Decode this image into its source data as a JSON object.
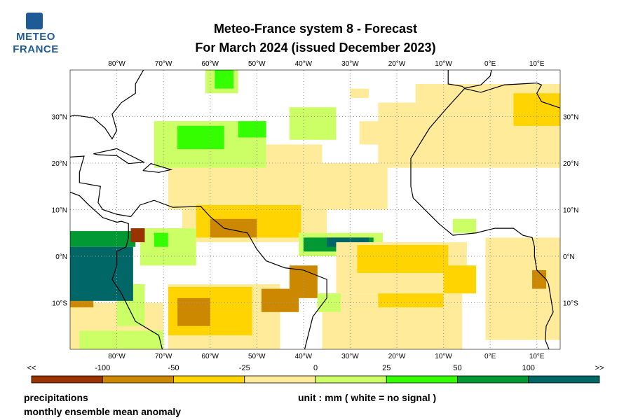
{
  "logo": {
    "line1": "METEO",
    "line2": "FRANCE"
  },
  "title": {
    "line1": "Meteo-France system 8  -  Forecast",
    "line2": "For March 2024      (issued December 2023)"
  },
  "map": {
    "lon_ticks": [
      {
        "v": -80,
        "label": "80°W"
      },
      {
        "v": -70,
        "label": "70°W"
      },
      {
        "v": -60,
        "label": "60°W"
      },
      {
        "v": -50,
        "label": "50°W"
      },
      {
        "v": -40,
        "label": "40°W"
      },
      {
        "v": -30,
        "label": "30°W"
      },
      {
        "v": -20,
        "label": "20°W"
      },
      {
        "v": -10,
        "label": "10°W"
      },
      {
        "v": 0,
        "label": "0°E"
      },
      {
        "v": 10,
        "label": "10°E"
      }
    ],
    "lat_ticks": [
      {
        "v": 30,
        "label": "30°N"
      },
      {
        "v": 20,
        "label": "20°N"
      },
      {
        "v": 10,
        "label": "10°N"
      },
      {
        "v": 0,
        "label": "0°N"
      },
      {
        "v": -10,
        "label": "10°S"
      }
    ],
    "extent": {
      "lon": [
        -90,
        15
      ],
      "lat": [
        -20,
        40
      ]
    },
    "patches": [
      {
        "lon": [
          -24,
          15
        ],
        "lat": [
          19,
          33
        ],
        "cat": 3
      },
      {
        "lon": [
          -16,
          15
        ],
        "lat": [
          33,
          37
        ],
        "cat": 3
      },
      {
        "lon": [
          -28,
          -20
        ],
        "lat": [
          24,
          29
        ],
        "cat": 3
      },
      {
        "lon": [
          -69,
          -22
        ],
        "lat": [
          10,
          20
        ],
        "cat": 3
      },
      {
        "lon": [
          -50,
          -36
        ],
        "lat": [
          19,
          24
        ],
        "cat": 3
      },
      {
        "lon": [
          -30,
          -26
        ],
        "lat": [
          34,
          36
        ],
        "cat": 3
      },
      {
        "lon": [
          -72,
          -48
        ],
        "lat": [
          19,
          29
        ],
        "cat": 4
      },
      {
        "lon": [
          -43,
          -33
        ],
        "lat": [
          25,
          32
        ],
        "cat": 4
      },
      {
        "lon": [
          -61,
          -54
        ],
        "lat": [
          35,
          40
        ],
        "cat": 4
      },
      {
        "lon": [
          -67,
          -57
        ],
        "lat": [
          23,
          28
        ],
        "cat": 5
      },
      {
        "lon": [
          -54,
          -48
        ],
        "lat": [
          25.5,
          29
        ],
        "cat": 5
      },
      {
        "lon": [
          -59,
          -55
        ],
        "lat": [
          36,
          40
        ],
        "cat": 5
      },
      {
        "lon": [
          -66,
          -35
        ],
        "lat": [
          3,
          10
        ],
        "cat": 3
      },
      {
        "lon": [
          -63,
          -40.5
        ],
        "lat": [
          4,
          11
        ],
        "cat": 2
      },
      {
        "lon": [
          -60,
          -50
        ],
        "lat": [
          4,
          8
        ],
        "cat": 1
      },
      {
        "lon": [
          -75,
          -63
        ],
        "lat": [
          -2,
          6
        ],
        "cat": 4
      },
      {
        "lon": [
          -72,
          -69
        ],
        "lat": [
          2,
          5
        ],
        "cat": 5
      },
      {
        "lon": [
          -41,
          -23
        ],
        "lat": [
          0,
          5
        ],
        "cat": 4
      },
      {
        "lon": [
          -40,
          -25
        ],
        "lat": [
          1,
          4
        ],
        "cat": 6
      },
      {
        "lon": [
          -35,
          -26
        ],
        "lat": [
          2,
          4
        ],
        "cat": 7
      },
      {
        "lon": [
          -33,
          -5
        ],
        "lat": [
          -8,
          3
        ],
        "cat": 3
      },
      {
        "lon": [
          -28.5,
          -9
        ],
        "lat": [
          -3.6,
          2.4
        ],
        "cat": 2
      },
      {
        "lon": [
          -10,
          -3
        ],
        "lat": [
          -8,
          -2
        ],
        "cat": 2
      },
      {
        "lon": [
          -36,
          -6
        ],
        "lat": [
          -20,
          -8
        ],
        "cat": 3
      },
      {
        "lon": [
          -24,
          -10
        ],
        "lat": [
          -11,
          -8
        ],
        "cat": 2
      },
      {
        "lon": [
          -69,
          -45
        ],
        "lat": [
          -20,
          -6
        ],
        "cat": 3
      },
      {
        "lon": [
          -69,
          -51
        ],
        "lat": [
          -17,
          -6.6
        ],
        "cat": 2
      },
      {
        "lon": [
          -67,
          -60
        ],
        "lat": [
          -15,
          -9
        ],
        "cat": 1
      },
      {
        "lon": [
          -49,
          -41
        ],
        "lat": [
          -12,
          -7
        ],
        "cat": 1
      },
      {
        "lon": [
          -43,
          -37
        ],
        "lat": [
          -9,
          -2
        ],
        "cat": 1
      },
      {
        "lon": [
          -37,
          -32
        ],
        "lat": [
          -12,
          -8
        ],
        "cat": 4
      },
      {
        "lon": [
          -90,
          -70
        ],
        "lat": [
          -20,
          -10
        ],
        "cat": 3
      },
      {
        "lon": [
          -88,
          -70
        ],
        "lat": [
          -20,
          -16
        ],
        "cat": 4
      },
      {
        "lon": [
          -80,
          -74
        ],
        "lat": [
          -15,
          -6
        ],
        "cat": 4
      },
      {
        "lon": [
          -90,
          -85
        ],
        "lat": [
          -11,
          -6.6
        ],
        "cat": 1
      },
      {
        "lon": [
          -90,
          -76
        ],
        "lat": [
          2,
          5.4
        ],
        "cat": 6
      },
      {
        "lon": [
          -90,
          -76.5
        ],
        "lat": [
          -9.6,
          2
        ],
        "cat": 7
      },
      {
        "lon": [
          -77,
          -74
        ],
        "lat": [
          3,
          6
        ],
        "cat": 0
      },
      {
        "lon": [
          -1,
          15
        ],
        "lat": [
          -18,
          4
        ],
        "cat": 3
      },
      {
        "lon": [
          9,
          12
        ],
        "lat": [
          -7,
          -3
        ],
        "cat": 1
      },
      {
        "lon": [
          -8,
          -3
        ],
        "lat": [
          5,
          8
        ],
        "cat": 4
      },
      {
        "lon": [
          5,
          15
        ],
        "lat": [
          28,
          35
        ],
        "cat": 2
      }
    ]
  },
  "colorbar": {
    "colors": [
      "#993300",
      "#cc8800",
      "#ffd400",
      "#ffeb99",
      "#ccff66",
      "#33ff00",
      "#009933",
      "#006666"
    ],
    "labels": [
      "<<",
      "-100",
      "-50",
      "-25",
      "0",
      "25",
      "50",
      "100",
      ">>"
    ]
  },
  "footer": {
    "variable": "precipitations",
    "description": "monthly ensemble mean anomaly",
    "unit": "unit : mm  ( white = no signal )"
  }
}
